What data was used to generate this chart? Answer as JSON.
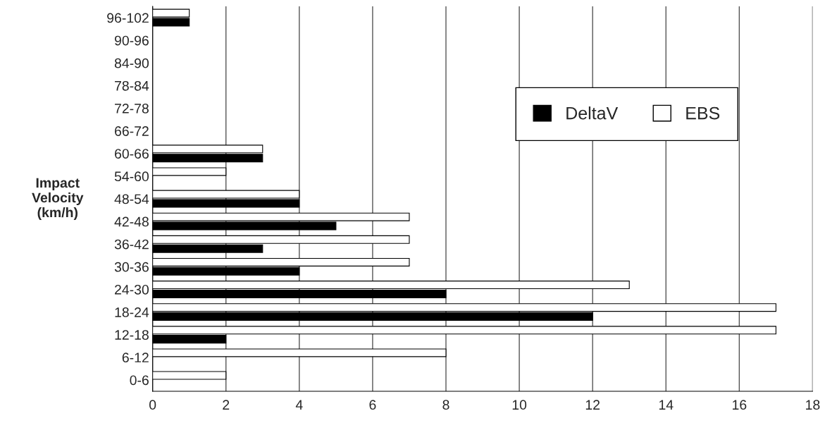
{
  "chart_data": {
    "type": "bar",
    "orientation": "horizontal",
    "ylabel": "Impact\nVelocity\n(km/h)",
    "categories": [
      "96-102",
      "90-96",
      "84-90",
      "78-84",
      "72-78",
      "66-72",
      "60-66",
      "54-60",
      "48-54",
      "42-48",
      "36-42",
      "30-36",
      "24-30",
      "18-24",
      "12-18",
      "6-12",
      "0-6"
    ],
    "series": [
      {
        "name": "EBS",
        "color": "#ffffff",
        "values": [
          1,
          0,
          0,
          0,
          0,
          0,
          3,
          2,
          4,
          7,
          7,
          7,
          13,
          17,
          17,
          8,
          2
        ]
      },
      {
        "name": "DeltaV",
        "color": "#000000",
        "values": [
          1,
          0,
          0,
          0,
          0,
          0,
          3,
          0,
          4,
          5,
          3,
          4,
          8,
          12,
          2,
          0,
          0
        ]
      }
    ],
    "xlim": [
      0,
      18
    ],
    "xticks": [
      0,
      2,
      4,
      6,
      8,
      10,
      12,
      14,
      16,
      18
    ],
    "grid": "x",
    "legend": "right"
  }
}
